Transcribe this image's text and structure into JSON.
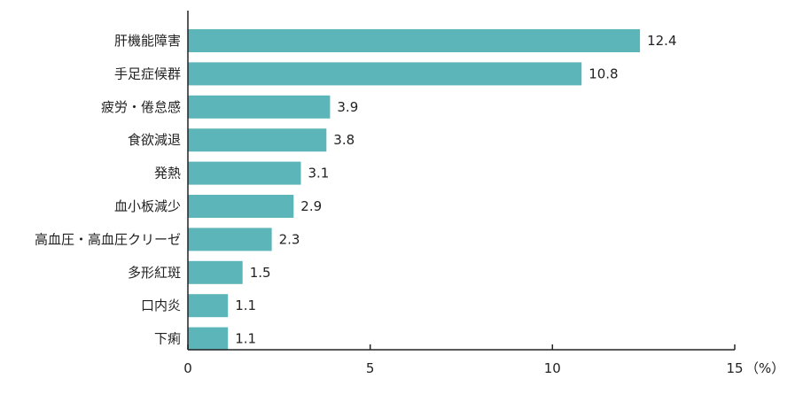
{
  "chart_data": {
    "type": "bar",
    "orientation": "horizontal",
    "categories": [
      "肝機能障害",
      "手足症候群",
      "疲労・倦怠感",
      "食欲減退",
      "発熱",
      "血小板減少",
      "高血圧・高血圧クリーゼ",
      "多形紅斑",
      "口内炎",
      "下痢"
    ],
    "values": [
      12.4,
      10.8,
      3.9,
      3.8,
      3.1,
      2.9,
      2.3,
      1.5,
      1.1,
      1.1
    ],
    "value_labels": [
      "12.4",
      "10.8",
      "3.9",
      "3.8",
      "3.1",
      "2.9",
      "2.3",
      "1.5",
      "1.1",
      "1.1"
    ],
    "xlim": [
      0,
      15
    ],
    "x_ticks": [
      0,
      5,
      10,
      15
    ],
    "x_tick_labels": [
      "0",
      "5",
      "10",
      "15"
    ],
    "unit_label": "（%）",
    "grid": false,
    "bar_color": "#5cb5b8",
    "axis_color": "#222222"
  }
}
